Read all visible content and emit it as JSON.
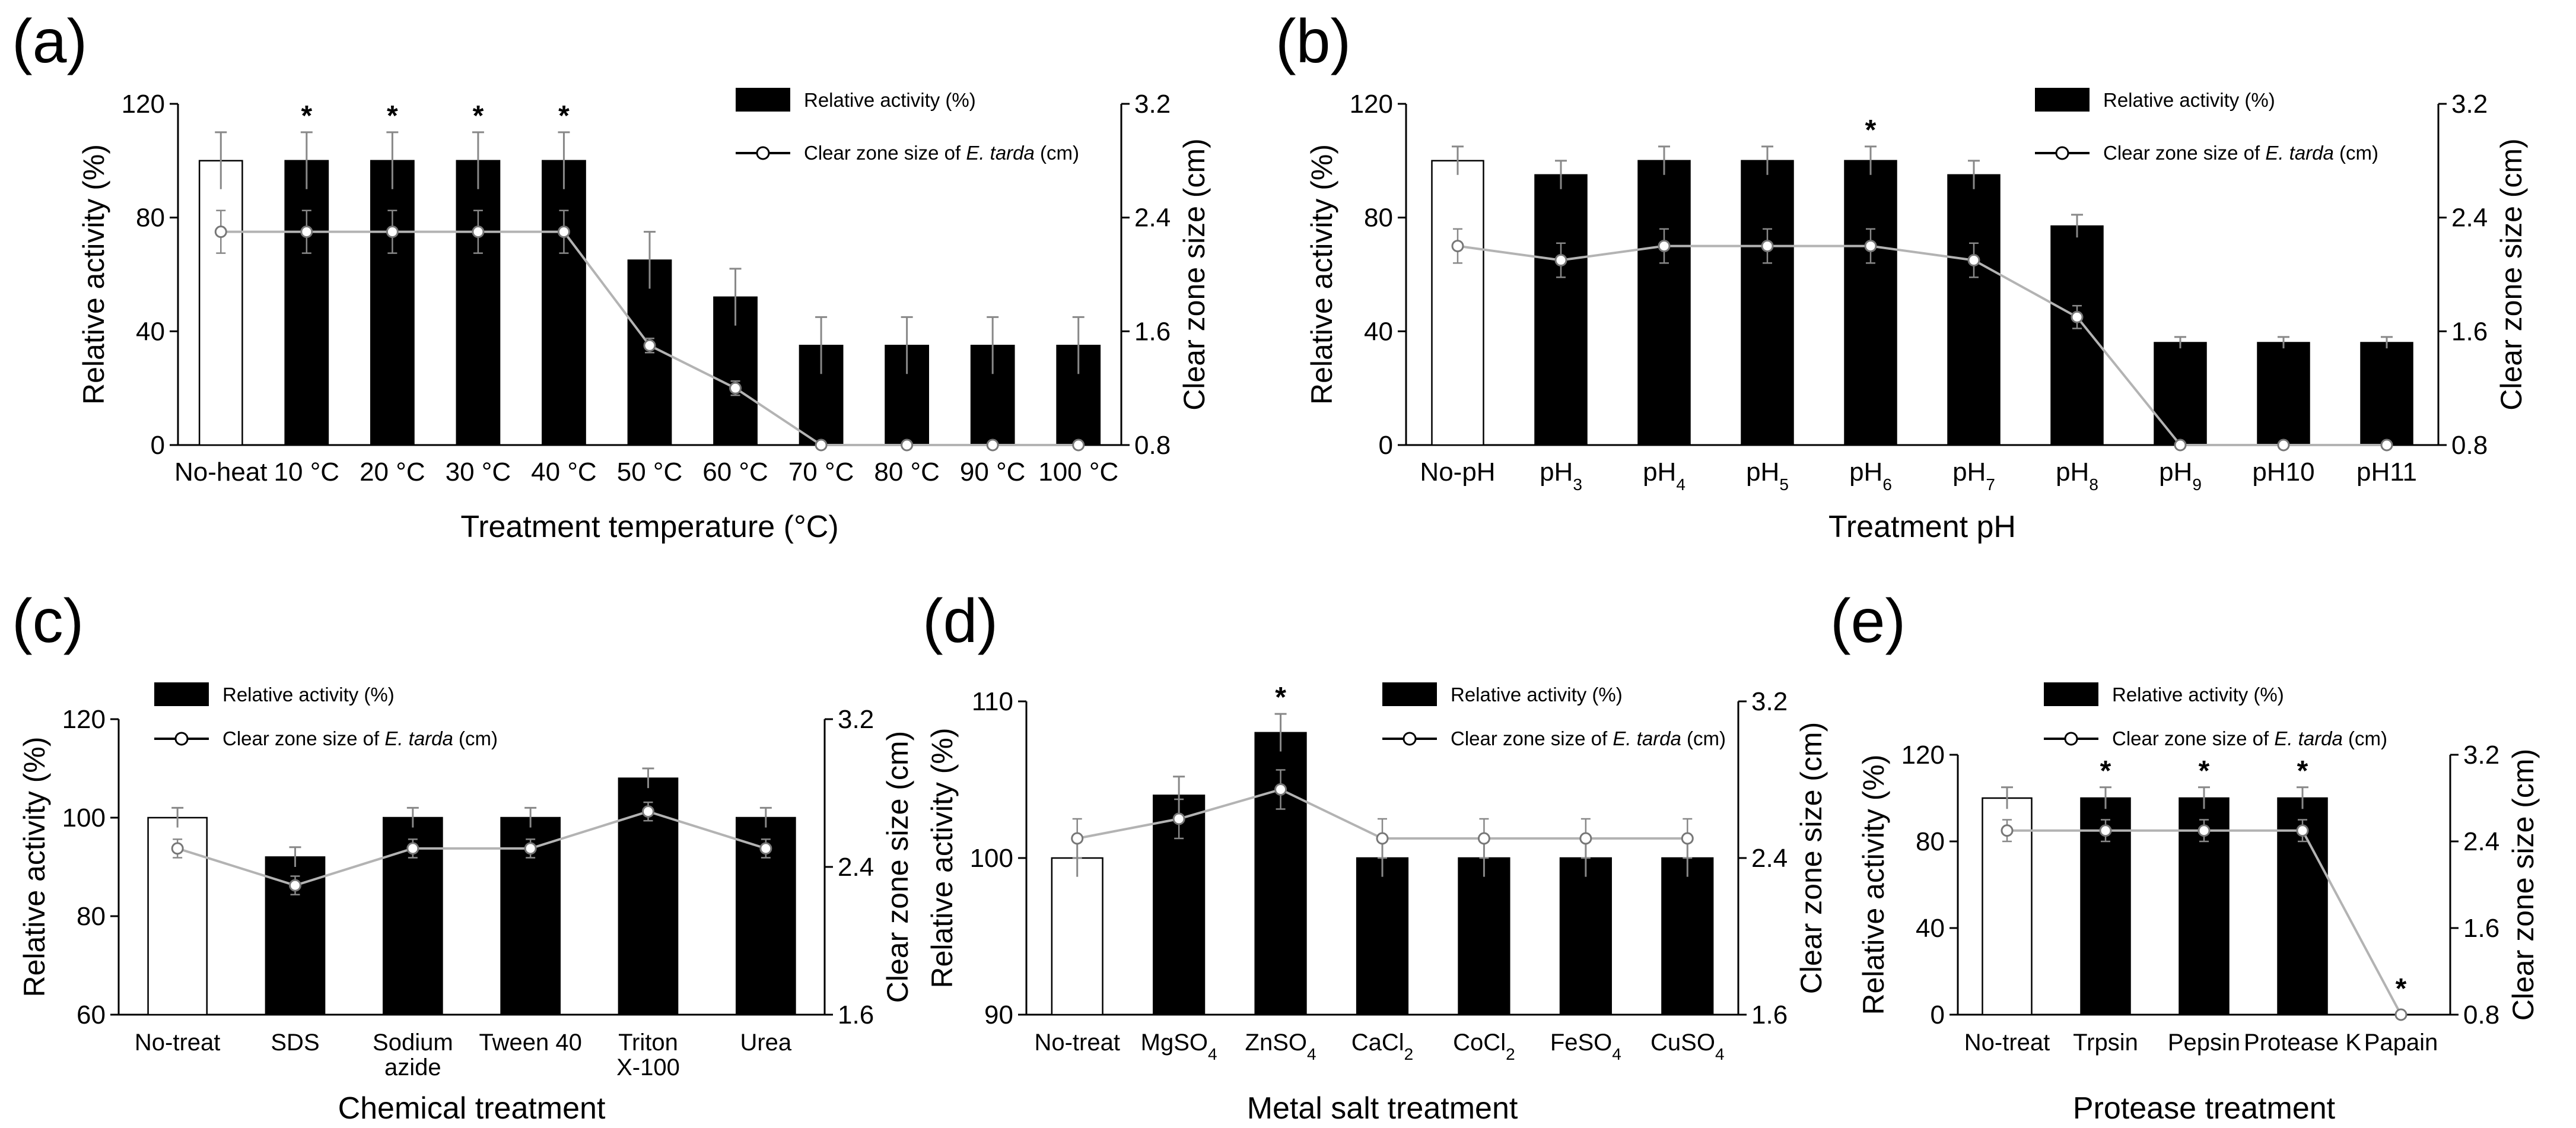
{
  "figure": {
    "panels": [
      "(a)",
      "(b)",
      "(c)",
      "(d)",
      "(e)"
    ]
  },
  "legend": {
    "bar_label": "Relative activity (%)",
    "line_label_prefix": "Clear zone size of ",
    "line_label_species": "E. tarda",
    "line_label_suffix": " (cm)"
  },
  "colors": {
    "bar_control": "#ffffff",
    "bar_treated": "#000000",
    "line": "#b3b3b3",
    "marker_fill": "#ffffff",
    "error_bar": "#888888"
  },
  "chart_data": [
    {
      "panel": "(a)",
      "type": "bar",
      "xlabel": "Treatment temperature (°C)",
      "ylabel": "Relative activity (%)",
      "y2label": "Clear zone size (cm)",
      "ylim": [
        0,
        120
      ],
      "yticks": [
        "0",
        "40",
        "80",
        "120"
      ],
      "y2lim": [
        0.8,
        3.2
      ],
      "y2ticks": [
        "0.8",
        "1.6",
        "2.4",
        "3.2"
      ],
      "categories": [
        "No-heat",
        "10 °C",
        "20 °C",
        "30 °C",
        "40 °C",
        "50 °C",
        "60 °C",
        "70 °C",
        "80 °C",
        "90 °C",
        "100 °C"
      ],
      "series": [
        {
          "name": "Relative activity (%)",
          "values": [
            100,
            100,
            100,
            100,
            100,
            65,
            52,
            35,
            35,
            35,
            35
          ],
          "errors": [
            10,
            10,
            10,
            10,
            10,
            10,
            10,
            10,
            10,
            10,
            10
          ]
        },
        {
          "name": "Clear zone size of E. tarda (cm)",
          "values": [
            2.3,
            2.3,
            2.3,
            2.3,
            2.3,
            1.5,
            1.2,
            0.8,
            0.8,
            0.8,
            0.8
          ],
          "errors": [
            0.15,
            0.15,
            0.15,
            0.15,
            0.15,
            0.05,
            0.05,
            0,
            0,
            0,
            0
          ]
        }
      ],
      "significance": [
        "",
        "*",
        "*",
        "*",
        "*",
        "",
        "",
        "",
        "",
        "",
        ""
      ]
    },
    {
      "panel": "(b)",
      "type": "bar",
      "xlabel": "Treatment pH",
      "ylabel": "Relative activity (%)",
      "y2label": "Clear zone size (cm)",
      "ylim": [
        0,
        120
      ],
      "yticks": [
        "0",
        "40",
        "80",
        "120"
      ],
      "y2lim": [
        0.8,
        3.2
      ],
      "y2ticks": [
        "0.8",
        "1.6",
        "2.4",
        "3.2"
      ],
      "categories": [
        "No-pH",
        "pH3",
        "pH4",
        "pH5",
        "pH6",
        "pH7",
        "pH8",
        "pH9",
        "pH10",
        "pH11"
      ],
      "series": [
        {
          "name": "Relative activity (%)",
          "values": [
            100,
            95,
            100,
            100,
            100,
            95,
            77,
            36,
            36,
            36
          ],
          "errors": [
            5,
            5,
            5,
            5,
            5,
            5,
            4,
            2,
            2,
            2
          ]
        },
        {
          "name": "Clear zone size of E. tarda (cm)",
          "values": [
            2.2,
            2.1,
            2.2,
            2.2,
            2.2,
            2.1,
            1.7,
            0.8,
            0.8,
            0.8
          ],
          "errors": [
            0.12,
            0.12,
            0.12,
            0.12,
            0.12,
            0.12,
            0.08,
            0,
            0,
            0
          ]
        }
      ],
      "significance": [
        "",
        "",
        "",
        "",
        "*",
        "",
        "",
        "",
        "",
        ""
      ]
    },
    {
      "panel": "(c)",
      "type": "bar",
      "xlabel": "Chemical treatment",
      "ylabel": "Relative activity (%)",
      "y2label": "Clear zone size (cm)",
      "ylim": [
        60,
        120
      ],
      "yticks": [
        "60",
        "80",
        "100",
        "120"
      ],
      "y2lim": [
        1.6,
        3.2
      ],
      "y2ticks": [
        "1.6",
        "2.4",
        "3.2"
      ],
      "categories": [
        [
          "No-treat"
        ],
        [
          "SDS"
        ],
        [
          "Sodium",
          "azide"
        ],
        [
          "Tween 40"
        ],
        [
          "Triton",
          "X-100"
        ],
        [
          "Urea"
        ]
      ],
      "series": [
        {
          "name": "Relative activity (%)",
          "values": [
            100,
            92,
            100,
            100,
            108,
            100
          ],
          "errors": [
            2,
            2,
            2,
            2,
            2,
            2
          ]
        },
        {
          "name": "Clear zone size of E. tarda (cm)",
          "values": [
            2.5,
            2.3,
            2.5,
            2.5,
            2.7,
            2.5
          ],
          "errors": [
            0.05,
            0.05,
            0.05,
            0.05,
            0.05,
            0.05
          ]
        }
      ],
      "significance": [
        "",
        "",
        "",
        "",
        "",
        ""
      ]
    },
    {
      "panel": "(d)",
      "type": "bar",
      "xlabel": "Metal salt treatment",
      "ylabel": "Relative activity (%)",
      "y2label": "Clear zone size (cm)",
      "ylim": [
        90,
        110
      ],
      "yticks": [
        "90",
        "100",
        "110"
      ],
      "y2lim": [
        1.6,
        3.2
      ],
      "y2ticks": [
        "1.6",
        "2.4",
        "3.2"
      ],
      "categories": [
        "No-treat",
        "MgSO4",
        "ZnSO4",
        "CaCl2",
        "CoCl2",
        "FeSO4",
        "CuSO4"
      ],
      "series": [
        {
          "name": "Relative activity (%)",
          "values": [
            100,
            104,
            108,
            100,
            100,
            100,
            100
          ],
          "errors": [
            1.2,
            1.2,
            1.2,
            1.2,
            1.2,
            1.2,
            1.2
          ]
        },
        {
          "name": "Clear zone size of E. tarda (cm)",
          "values": [
            2.5,
            2.6,
            2.75,
            2.5,
            2.5,
            2.5,
            2.5
          ],
          "errors": [
            0.1,
            0.1,
            0.1,
            0.1,
            0.1,
            0.1,
            0.1
          ]
        }
      ],
      "significance": [
        "",
        "",
        "*",
        "",
        "",
        "",
        ""
      ]
    },
    {
      "panel": "(e)",
      "type": "bar",
      "xlabel": "Protease treatment",
      "ylabel": "Relative activity (%)",
      "y2label": "Clear zone size (cm)",
      "ylim": [
        0,
        120
      ],
      "yticks": [
        "0",
        "40",
        "80",
        "120"
      ],
      "y2lim": [
        0.8,
        3.2
      ],
      "y2ticks": [
        "0.8",
        "1.6",
        "2.4",
        "3.2"
      ],
      "categories": [
        "No-treat",
        "Trpsin",
        "Pepsin",
        "Protease K",
        "Papain"
      ],
      "series": [
        {
          "name": "Relative activity (%)",
          "values": [
            100,
            100,
            100,
            100,
            0
          ],
          "errors": [
            5,
            5,
            5,
            5,
            0
          ]
        },
        {
          "name": "Clear zone size of E. tarda (cm)",
          "values": [
            2.5,
            2.5,
            2.5,
            2.5,
            0.8
          ],
          "errors": [
            0.1,
            0.1,
            0.1,
            0.1,
            0
          ]
        }
      ],
      "significance": [
        "",
        "*",
        "*",
        "*",
        "*"
      ]
    }
  ]
}
